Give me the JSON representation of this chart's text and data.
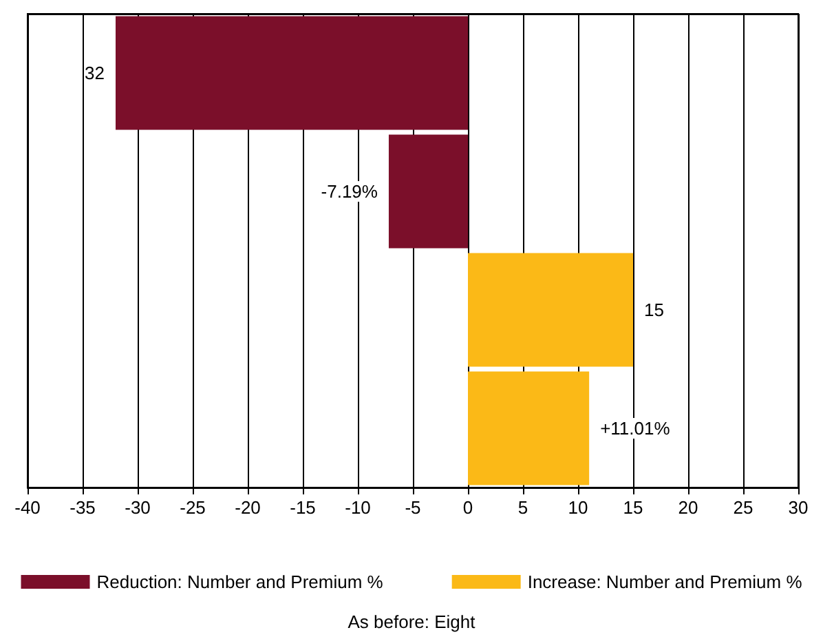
{
  "chart_data": {
    "type": "bar",
    "orientation": "horizontal",
    "categories": [
      null,
      null,
      null,
      null
    ],
    "series": [
      {
        "name": "Reduction: Number and Premium %",
        "color": "#7b0f2a",
        "values": [
          -32,
          -7.19,
          null,
          null
        ],
        "value_labels": [
          null,
          "-7.19%",
          null,
          null
        ]
      },
      {
        "name": "Increase: Number and Premium %",
        "color": "#fbb917",
        "values": [
          null,
          null,
          15,
          11.01
        ],
        "value_labels": [
          null,
          null,
          "15",
          "+11.01%"
        ]
      }
    ],
    "xlim": [
      -40,
      30
    ],
    "xticks": [
      -40,
      -35,
      -30,
      -25,
      -20,
      -15,
      -10,
      -5,
      0,
      5,
      10,
      15,
      20,
      25,
      30
    ],
    "grid": "x",
    "legend": "bottom",
    "annotations": [
      {
        "text": "32",
        "x": -32
      },
      "As before: Eight"
    ]
  }
}
